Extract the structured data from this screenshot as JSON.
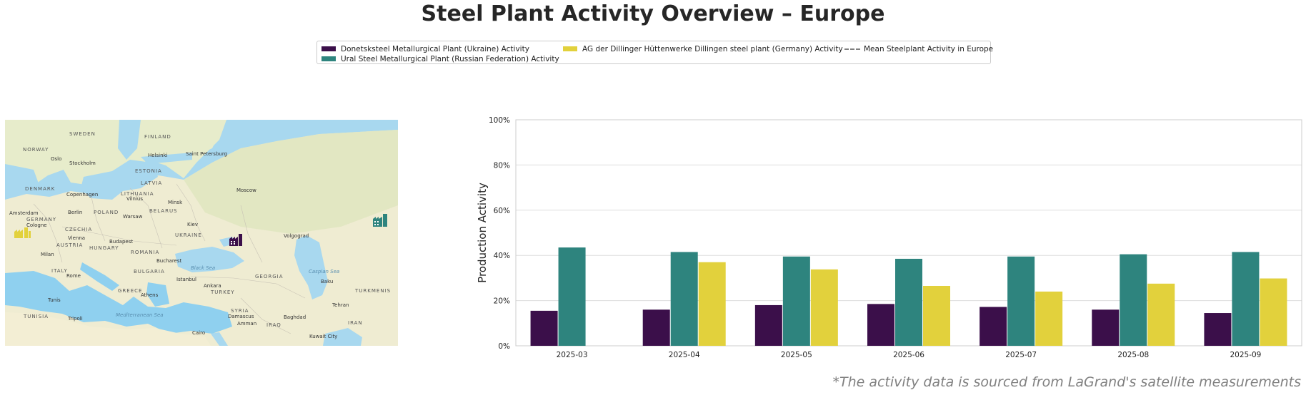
{
  "title": "Steel Plant Activity Overview – Europe",
  "footnote": "*The activity data is sourced from LaGrand's satellite measurements",
  "legend": {
    "items": [
      {
        "label": "Donetsksteel Metallurgical Plant (Ukraine) Activity",
        "color": "#3b0f4a"
      },
      {
        "label": "Ural Steel Metallurgical Plant (Russian Federation) Activity",
        "color": "#2e847e"
      },
      {
        "label": "AG der Dillinger Hüttenwerke Dillingen steel plant (Germany) Activity",
        "color": "#e2d13c"
      },
      {
        "label": "Mean Steelplant Activity in Europe",
        "color": "#7f7f7f"
      }
    ]
  },
  "map": {
    "water_color": "#a8d8ef",
    "land_color": "#f1edd8",
    "labels": [
      "SWEDEN",
      "FINLAND",
      "NORWAY",
      "Oslo",
      "Stockholm",
      "Helsinki",
      "Saint Petersburg",
      "ESTONIA",
      "LATVIA",
      "DENMARK",
      "Copenhagen",
      "LITHUANIA",
      "Vilnius",
      "Moscow",
      "Minsk",
      "BELARUS",
      "Amsterdam",
      "Berlin",
      "POLAND",
      "Warsaw",
      "GERMANY",
      "Cologne",
      "CZECHIA",
      "Kiev",
      "UKRAINE",
      "Volgograd",
      "Vienna",
      "AUSTRIA",
      "Budapest",
      "HUNGARY",
      "ROMANIA",
      "Milan",
      "Bucharest",
      "ITALY",
      "Rome",
      "BULGARIA",
      "Black Sea",
      "GEORGIA",
      "Istanbul",
      "Ankara",
      "TURKEY",
      "Baku",
      "TURKMENIS",
      "GREECE",
      "Athens",
      "Tunis",
      "TUNISIA",
      "Tripoli",
      "Mediterranean Sea",
      "SYRIA",
      "Damascus",
      "Amman",
      "Baghdad",
      "IRAQ",
      "IRAN",
      "Tehran",
      "Cairo",
      "Kuwait City",
      "Caspian Sea"
    ],
    "markers": [
      {
        "name": "dillingen-plant-marker",
        "color": "#e2d13c"
      },
      {
        "name": "donetsk-plant-marker",
        "color": "#3b0f4a"
      },
      {
        "name": "ural-plant-marker",
        "color": "#2e847e"
      }
    ]
  },
  "chart_data": {
    "type": "bar",
    "title": "",
    "xlabel": "",
    "ylabel": "Production Activity",
    "ylim": [
      0,
      100
    ],
    "yticks": [
      0,
      20,
      40,
      60,
      80,
      100
    ],
    "ytick_labels": [
      "0%",
      "20%",
      "40%",
      "60%",
      "80%",
      "100%"
    ],
    "grid": true,
    "categories": [
      "2025-03",
      "2025-04",
      "2025-05",
      "2025-06",
      "2025-07",
      "2025-08",
      "2025-09"
    ],
    "series": [
      {
        "name": "Donetsksteel Metallurgical Plant (Ukraine) Activity",
        "color": "#3b0f4a",
        "values": [
          15.5,
          16,
          18,
          18.5,
          17.2,
          16,
          14.5
        ]
      },
      {
        "name": "Ural Steel Metallurgical Plant (Russian Federation) Activity",
        "color": "#2e847e",
        "values": [
          43.5,
          41.5,
          39.5,
          38.5,
          39.5,
          40.5,
          41.5
        ]
      },
      {
        "name": "AG der Dillinger Hüttenwerke Dillingen steel plant (Germany) Activity",
        "color": "#e2d13c",
        "values": [
          null,
          37,
          33.8,
          26.5,
          24,
          27.5,
          29.8
        ]
      }
    ]
  }
}
